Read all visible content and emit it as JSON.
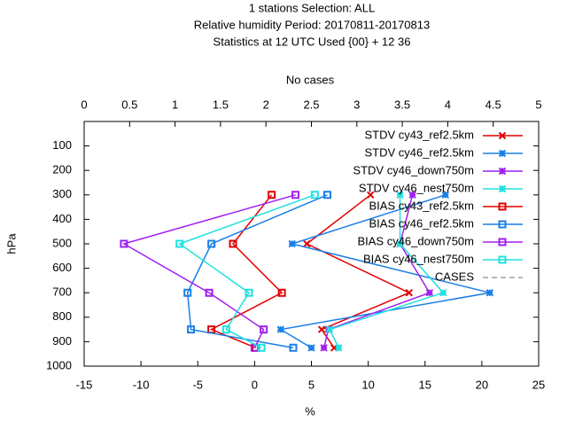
{
  "chart_data": {
    "type": "profile",
    "title_lines": [
      "1 stations Selection: ALL",
      "Relative humidity  Period: 20170811-20170813",
      "Statistics at 12 UTC  Used {00} + 12 36"
    ],
    "x_label": "%",
    "x2_label": "No cases",
    "y_label": "hPa",
    "xlim": [
      -15,
      25
    ],
    "xticks": [
      -15,
      -10,
      -5,
      0,
      5,
      10,
      15,
      20,
      25
    ],
    "x2lim": [
      0,
      5
    ],
    "x2ticks": [
      0,
      0.5,
      1,
      1.5,
      2,
      2.5,
      3,
      3.5,
      4,
      4.5,
      5
    ],
    "ylim": [
      0,
      1000
    ],
    "y_reversed": true,
    "yticks": [
      100,
      200,
      300,
      400,
      500,
      600,
      700,
      800,
      900,
      1000
    ],
    "legend": "top-right",
    "y": [
      300,
      500,
      700,
      850,
      925
    ],
    "series": [
      {
        "name": "STDV cy43_ref2.5km",
        "color": "#e00000",
        "marker": "x",
        "values": [
          10.2,
          4.6,
          13.6,
          5.9,
          7.0
        ]
      },
      {
        "name": "STDV cy46_ref2.5km",
        "color": "#1a7fe6",
        "marker": "star",
        "values": [
          16.8,
          3.3,
          20.7,
          2.3,
          5.0
        ]
      },
      {
        "name": "STDV cy46_down750m",
        "color": "#a020f0",
        "marker": "star",
        "values": [
          13.9,
          12.8,
          15.4,
          6.5,
          6.1
        ]
      },
      {
        "name": "STDV cy46_nest750m",
        "color": "#20e0e0",
        "marker": "star",
        "values": [
          12.8,
          12.8,
          16.6,
          6.6,
          7.4
        ]
      },
      {
        "name": "BIAS cy43_ref2.5km",
        "color": "#e00000",
        "marker": "square",
        "values": [
          1.5,
          -1.9,
          2.4,
          -3.8,
          0.1
        ]
      },
      {
        "name": "BIAS cy46_ref2.5km",
        "color": "#1a7fe6",
        "marker": "square",
        "values": [
          6.4,
          -3.8,
          -5.9,
          -5.6,
          3.4
        ]
      },
      {
        "name": "BIAS cy46_down750m",
        "color": "#a020f0",
        "marker": "square",
        "values": [
          3.6,
          -11.5,
          -4.0,
          0.8,
          0.0
        ]
      },
      {
        "name": "BIAS cy46_nest750m",
        "color": "#20e0e0",
        "marker": "square",
        "values": [
          5.3,
          -6.6,
          -0.5,
          -2.5,
          0.6
        ]
      },
      {
        "name": "CASES",
        "color": "#a0a0a0",
        "marker": "none",
        "dashed": true,
        "axis": "x2",
        "values": [
          null,
          null,
          null,
          null,
          null
        ]
      }
    ]
  }
}
